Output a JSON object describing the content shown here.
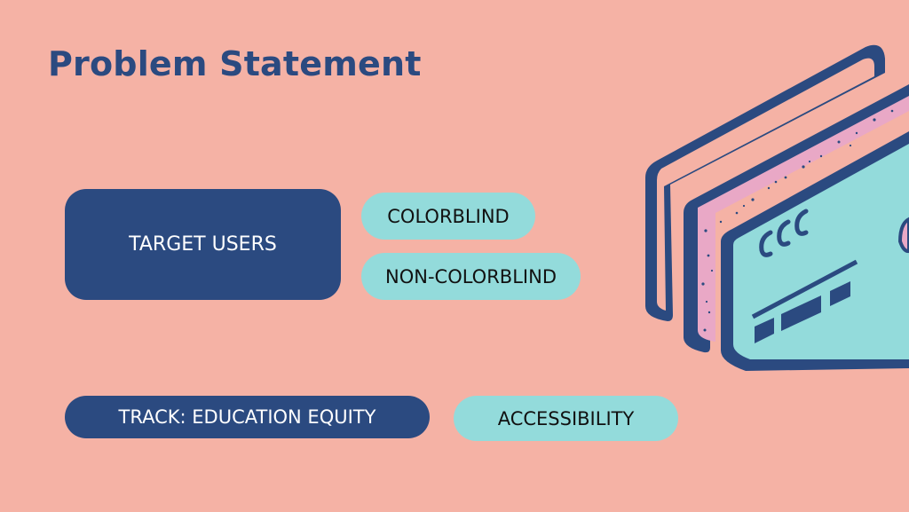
{
  "slide": {
    "title": "Problem Statement",
    "target_users_label": "TARGET USERS",
    "user_types": [
      "COLORBLIND",
      "NON-COLORBLIND"
    ],
    "track_label": "TRACK: EDUCATION EQUITY",
    "accessibility_label": "ACCESSIBILITY"
  },
  "illustration": {
    "icon": "credit-card-stack-icon",
    "card_text": "ccc"
  },
  "colors": {
    "background": "#f5b2a5",
    "navy": "#2b4a80",
    "teal": "#93dbdb",
    "pink": "#e9a8c6"
  }
}
